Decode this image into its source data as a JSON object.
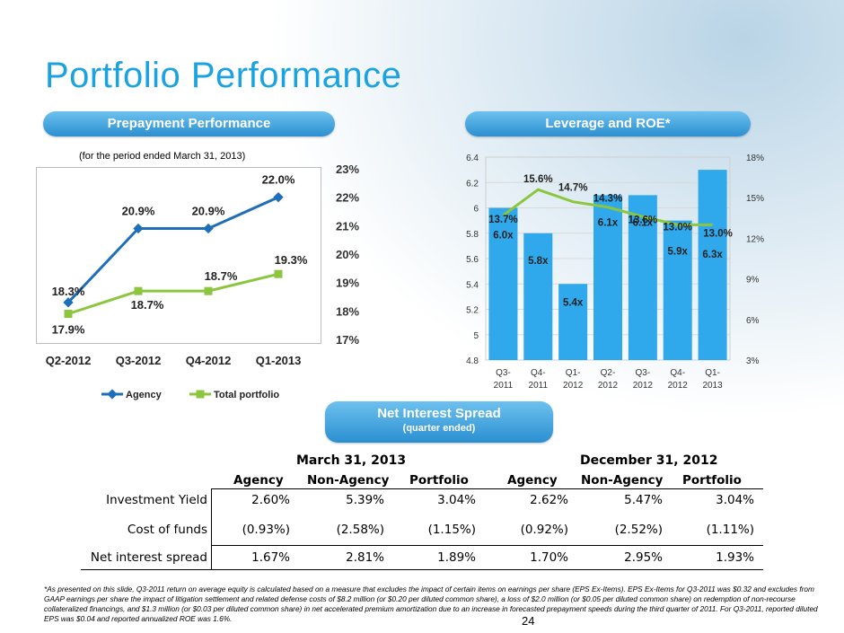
{
  "title": "Portfolio Performance",
  "prepay": {
    "pill": "Prepayment Performance",
    "note": "(for the period ended March 31, 2013)",
    "chart_data": {
      "type": "line",
      "categories": [
        "Q2-2012",
        "Q3-2012",
        "Q4-2012",
        "Q1-2013"
      ],
      "series": [
        {
          "name": "Agency",
          "values": [
            18.3,
            20.9,
            20.9,
            22.0
          ],
          "labels": [
            "18.3%",
            "20.9%",
            "20.9%",
            "22.0%"
          ],
          "color": "#1e6fb8"
        },
        {
          "name": "Total portfolio",
          "values": [
            17.9,
            18.7,
            18.7,
            19.3
          ],
          "labels": [
            "17.9%",
            "18.7%",
            "18.7%",
            "19.3%"
          ],
          "color": "#8cc63f"
        }
      ],
      "ylim": [
        17,
        23
      ],
      "yticks": [
        "17%",
        "18%",
        "19%",
        "20%",
        "21%",
        "22%",
        "23%"
      ],
      "y_axis_side": "right",
      "legend": "bottom"
    }
  },
  "leverage": {
    "pill": "Leverage and ROE*",
    "chart_data": {
      "type": "bar",
      "categories": [
        [
          "Q3-",
          "2011"
        ],
        [
          "Q4-",
          "2011"
        ],
        [
          "Q1-",
          "2012"
        ],
        [
          "Q2-",
          "2012"
        ],
        [
          "Q3-",
          "2012"
        ],
        [
          "Q4-",
          "2012"
        ],
        [
          "Q1-",
          "2013"
        ]
      ],
      "bars": {
        "values": [
          6.0,
          5.8,
          5.4,
          6.1,
          6.1,
          5.9,
          6.3
        ],
        "labels": [
          "6.0x",
          "5.8x",
          "5.4x",
          "6.1x",
          "6.1x",
          "5.9x",
          "6.3x"
        ],
        "color": "#2fa8ec"
      },
      "line": {
        "values": [
          13.7,
          15.6,
          14.7,
          14.3,
          13.6,
          13.0,
          13.0
        ],
        "labels": [
          "13.7%",
          "15.6%",
          "14.7%",
          "14.3%",
          "13.6%",
          "13.0%",
          "13.0%"
        ],
        "color": "#8cc63f"
      },
      "ylim_left": [
        4.8,
        6.4
      ],
      "yticks_left": [
        "4.8",
        "5",
        "5.2",
        "5.4",
        "5.6",
        "5.8",
        "6",
        "6.2",
        "6.4"
      ],
      "ylim_right": [
        3,
        18
      ],
      "yticks_right": [
        "3%",
        "6%",
        "9%",
        "12%",
        "15%",
        "18%"
      ]
    }
  },
  "nis": {
    "pill": "Net Interest Spread",
    "pill_sub": "(quarter ended)",
    "period1": "March 31, 2013",
    "period2": "December 31, 2012",
    "columns": [
      "Agency",
      "Non-Agency",
      "Portfolio",
      "Agency",
      "Non-Agency",
      "Portfolio"
    ],
    "rows": [
      {
        "label": "Investment Yield",
        "values": [
          "2.60%",
          "5.39%",
          "3.04%",
          "2.62%",
          "5.47%",
          "3.04%"
        ]
      },
      {
        "label": "Cost of funds",
        "values": [
          "(0.93%)",
          "(2.58%)",
          "(1.15%)",
          "(0.92%)",
          "(2.52%)",
          "(1.11%)"
        ]
      },
      {
        "label": "Net interest spread",
        "values": [
          "1.67%",
          "2.81%",
          "1.89%",
          "1.70%",
          "2.95%",
          "1.93%"
        ]
      }
    ]
  },
  "footnote": "*As presented on this slide, Q3-2011 return on average equity is calculated based on a measure that excludes the impact of certain items on earnings per share (EPS Ex-Items).  EPS Ex-Items for Q3-2011 was $0.32 and excludes from GAAP earnings per share the impact of litigation settlement and related defense costs of $8.2 million (or $0.20 per diluted common share), a loss of $2.0 million (or $0.05 per diluted common share) on redemption of non-recourse collateralized financings, and $1.3 million (or $0.03 per diluted common share) in net accelerated premium amortization due to an increase in forecasted prepayment speeds during the third quarter of 2011.  For Q3-2011, reported diluted EPS was $0.04 and reported annualized ROE was 1.6%.",
  "page_number": "24"
}
